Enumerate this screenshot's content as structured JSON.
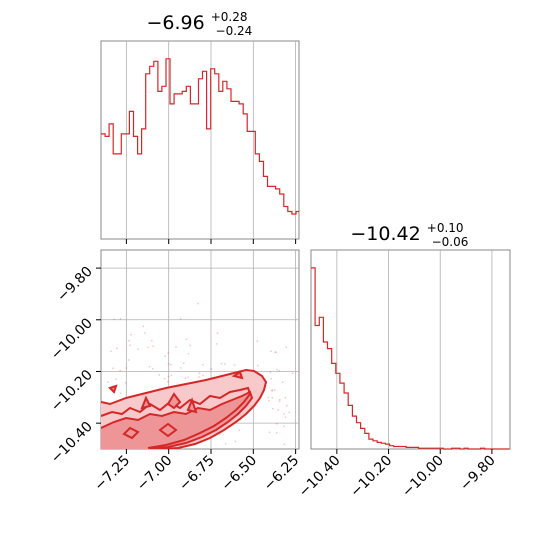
{
  "colors": {
    "series": "#d62728",
    "fill_outer": "#f7c9ca",
    "fill_inner": "#ee9597",
    "grid": "#b0b0b0",
    "frame": "#888888"
  },
  "titles": {
    "p1": {
      "main": "−6.96",
      "sup": "+0.28",
      "sub": "−0.24"
    },
    "p2": {
      "main": "−10.42",
      "sup": "+0.10",
      "sub": "−0.06"
    }
  },
  "chart_data": [
    {
      "type": "histogram",
      "xlim": [
        -7.4,
        -6.23
      ],
      "x_ticks": [
        -7.25,
        -7.0,
        -6.75,
        -6.5,
        -6.25
      ],
      "bin_width": 0.024,
      "bin_start": -7.4,
      "values": [
        42,
        41,
        46,
        34,
        34,
        42,
        42,
        51,
        41,
        34,
        44,
        66,
        69,
        71,
        59,
        61,
        72,
        54,
        58,
        58,
        59,
        61,
        54,
        54,
        64,
        67,
        44,
        68,
        66,
        59,
        63,
        60,
        55,
        55,
        54,
        50,
        43,
        43,
        34,
        31,
        25,
        21,
        21,
        20,
        18,
        13,
        11,
        10,
        11,
        9,
        5,
        4,
        3,
        1
      ]
    },
    {
      "type": "contour",
      "xlim": [
        -7.4,
        -6.23
      ],
      "ylim": [
        -10.5,
        -9.73
      ],
      "x_ticks": [
        -7.25,
        -7.0,
        -6.75,
        -6.5,
        -6.25
      ],
      "y_ticks": [
        -9.8,
        -10.0,
        -10.2,
        -10.4
      ]
    },
    {
      "type": "histogram",
      "xlim": [
        -10.5,
        -9.73
      ],
      "x_ticks": [
        -10.4,
        -10.2,
        -10.0,
        -9.8
      ],
      "bin_width": 0.016,
      "bin_start": -10.5,
      "values": [
        220,
        150,
        160,
        130,
        122,
        104,
        92,
        80,
        68,
        53,
        40,
        32,
        25,
        19,
        12,
        10,
        8,
        7,
        6,
        4,
        3,
        3,
        3,
        2,
        2,
        2,
        1,
        1,
        1,
        1,
        1,
        1,
        0,
        0,
        1,
        1,
        0,
        1,
        0,
        0,
        0,
        1,
        0,
        0,
        0,
        0,
        0,
        0
      ]
    }
  ]
}
